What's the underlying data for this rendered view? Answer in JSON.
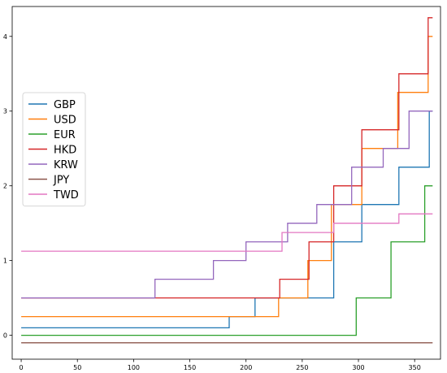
{
  "chart_data": {
    "type": "line",
    "step": "post",
    "xlim": [
      -8,
      373
    ],
    "ylim": [
      -0.32,
      4.4
    ],
    "x_ticks": [
      0,
      50,
      100,
      150,
      200,
      250,
      300,
      350
    ],
    "y_ticks": [
      0,
      1,
      2,
      3,
      4
    ],
    "grid": false,
    "legend_position": "center-left",
    "series": [
      {
        "name": "GBP",
        "color": "#1f77b4",
        "x": [
          0,
          185,
          208,
          278,
          303,
          336,
          363,
          366
        ],
        "y": [
          0.1,
          0.25,
          0.5,
          1.25,
          1.75,
          2.25,
          3.0,
          3.0
        ]
      },
      {
        "name": "USD",
        "color": "#ff7f0e",
        "x": [
          0,
          229,
          255,
          276,
          303,
          335,
          362,
          366
        ],
        "y": [
          0.25,
          0.5,
          1.0,
          1.75,
          2.5,
          3.25,
          4.0,
          4.0
        ]
      },
      {
        "name": "EUR",
        "color": "#2ca02c",
        "x": [
          0,
          298,
          329,
          359,
          366
        ],
        "y": [
          0.0,
          0.5,
          1.25,
          2.0,
          2.0
        ]
      },
      {
        "name": "HKD",
        "color": "#d62728",
        "x": [
          0,
          230,
          256,
          278,
          303,
          336,
          362,
          366
        ],
        "y": [
          0.5,
          0.75,
          1.25,
          2.0,
          2.75,
          3.5,
          4.25,
          4.25
        ]
      },
      {
        "name": "KRW",
        "color": "#9467bd",
        "x": [
          0,
          119,
          171,
          200,
          237,
          263,
          294,
          322,
          345,
          366
        ],
        "y": [
          0.5,
          0.75,
          1.0,
          1.25,
          1.5,
          1.75,
          2.25,
          2.5,
          3.0,
          3.0
        ]
      },
      {
        "name": "JPY",
        "color": "#8c564b",
        "x": [
          0,
          366
        ],
        "y": [
          -0.1,
          -0.1
        ]
      },
      {
        "name": "TWD",
        "color": "#e377c2",
        "x": [
          0,
          232,
          278,
          336,
          366
        ],
        "y": [
          1.125,
          1.375,
          1.5,
          1.625,
          1.625
        ]
      }
    ]
  }
}
